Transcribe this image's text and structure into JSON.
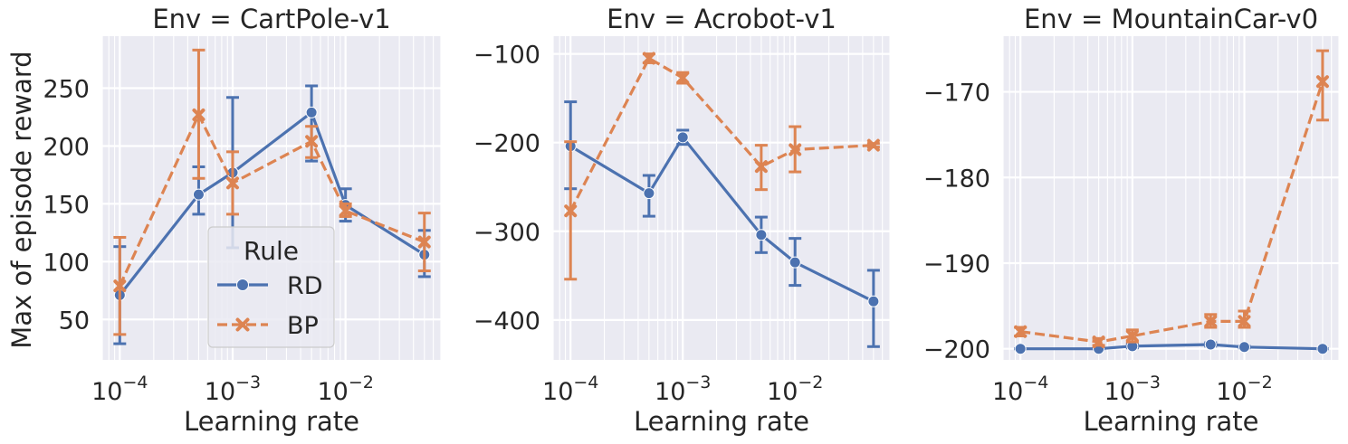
{
  "chart_data": [
    {
      "type": "line",
      "title": "Env = CartPole-v1",
      "xlabel": "Learning rate",
      "ylabel": "Max of episode reward",
      "xscale": "log",
      "xlim": [
        7e-05,
        0.07
      ],
      "ylim": [
        15,
        295
      ],
      "yticks": [
        50,
        100,
        150,
        200,
        250
      ],
      "xticks": [
        0.0001,
        0.001,
        0.01
      ],
      "xticklabels": [
        [
          "10",
          "−4"
        ],
        [
          "10",
          "−3"
        ],
        [
          "10",
          "−2"
        ]
      ],
      "legend": {
        "title": "Rule",
        "placement": "lower-center"
      },
      "series": [
        {
          "name": "RD",
          "color": "#4c72b0",
          "marker": "circle",
          "dashed": false,
          "x": [
            0.0001,
            0.0005,
            0.001,
            0.005,
            0.01,
            0.05
          ],
          "y": [
            71,
            158,
            177,
            229,
            149,
            106
          ],
          "err_low": [
            29,
            141,
            112,
            187,
            135,
            87
          ],
          "err_high": [
            113,
            182,
            242,
            252,
            163,
            127
          ]
        },
        {
          "name": "BP",
          "color": "#dd8452",
          "marker": "x",
          "dashed": true,
          "x": [
            0.0001,
            0.0005,
            0.001,
            0.005,
            0.01,
            0.05
          ],
          "y": [
            79,
            227,
            168,
            204,
            144,
            117
          ],
          "err_low": [
            37,
            172,
            141,
            190,
            139,
            92
          ],
          "err_high": [
            121,
            283,
            195,
            217,
            150,
            142
          ]
        }
      ]
    },
    {
      "type": "line",
      "title": "Env = Acrobot-v1",
      "xlabel": "Learning rate",
      "ylabel": "",
      "xscale": "log",
      "xlim": [
        7e-05,
        0.07
      ],
      "ylim": [
        -445,
        -80
      ],
      "yticks": [
        -400,
        -300,
        -200,
        -100
      ],
      "yticklabels": [
        "−400",
        "−300",
        "−200",
        "−100"
      ],
      "xticks": [
        0.0001,
        0.001,
        0.01
      ],
      "xticklabels": [
        [
          "10",
          "−4"
        ],
        [
          "10",
          "−3"
        ],
        [
          "10",
          "−2"
        ]
      ],
      "series": [
        {
          "name": "RD",
          "color": "#4c72b0",
          "marker": "circle",
          "dashed": false,
          "x": [
            0.0001,
            0.0005,
            0.001,
            0.005,
            0.01,
            0.05
          ],
          "y": [
            -204,
            -257,
            -194,
            -304,
            -335,
            -379
          ],
          "err_low": [
            -252,
            -283,
            -202,
            -324,
            -361,
            -430
          ],
          "err_high": [
            -154,
            -237,
            -186,
            -284,
            -308,
            -344
          ]
        },
        {
          "name": "BP",
          "color": "#dd8452",
          "marker": "x",
          "dashed": true,
          "x": [
            0.0001,
            0.0005,
            0.001,
            0.005,
            0.01,
            0.05
          ],
          "y": [
            -277,
            -105,
            -127,
            -227,
            -208,
            -203
          ],
          "err_low": [
            -354,
            -110,
            -133,
            -253,
            -233,
            -205
          ],
          "err_high": [
            -199,
            -100,
            -121,
            -203,
            -182,
            -201
          ]
        }
      ]
    },
    {
      "type": "line",
      "title": "Env = MountainCar-v0",
      "xlabel": "Learning rate",
      "ylabel": "",
      "xscale": "log",
      "xlim": [
        7e-05,
        0.07
      ],
      "ylim": [
        -201.3,
        -163.5
      ],
      "yticks": [
        -200,
        -190,
        -180,
        -170
      ],
      "yticklabels": [
        "−200",
        "−190",
        "−180",
        "−170"
      ],
      "xticks": [
        0.0001,
        0.001,
        0.01
      ],
      "xticklabels": [
        [
          "10",
          "−4"
        ],
        [
          "10",
          "−3"
        ],
        [
          "10",
          "−2"
        ]
      ],
      "series": [
        {
          "name": "RD",
          "color": "#4c72b0",
          "marker": "circle",
          "dashed": false,
          "x": [
            0.0001,
            0.0005,
            0.001,
            0.005,
            0.01,
            0.05
          ],
          "y": [
            -200,
            -200,
            -199.7,
            -199.5,
            -199.8,
            -200
          ],
          "err_low": [
            -200,
            -200,
            -199.9,
            -199.7,
            -199.9,
            -200
          ],
          "err_high": [
            -200,
            -200,
            -199.5,
            -199.3,
            -199.7,
            -200
          ]
        },
        {
          "name": "BP",
          "color": "#dd8452",
          "marker": "x",
          "dashed": true,
          "x": [
            0.0001,
            0.0005,
            0.001,
            0.005,
            0.01,
            0.05
          ],
          "y": [
            -198,
            -199.2,
            -198.5,
            -196.8,
            -196.8,
            -168.8
          ],
          "err_low": [
            -198.5,
            -199.6,
            -199.2,
            -197.5,
            -197.5,
            -173.3
          ],
          "err_high": [
            -197.5,
            -198.8,
            -197.8,
            -196,
            -195.6,
            -165.2
          ]
        }
      ]
    }
  ]
}
